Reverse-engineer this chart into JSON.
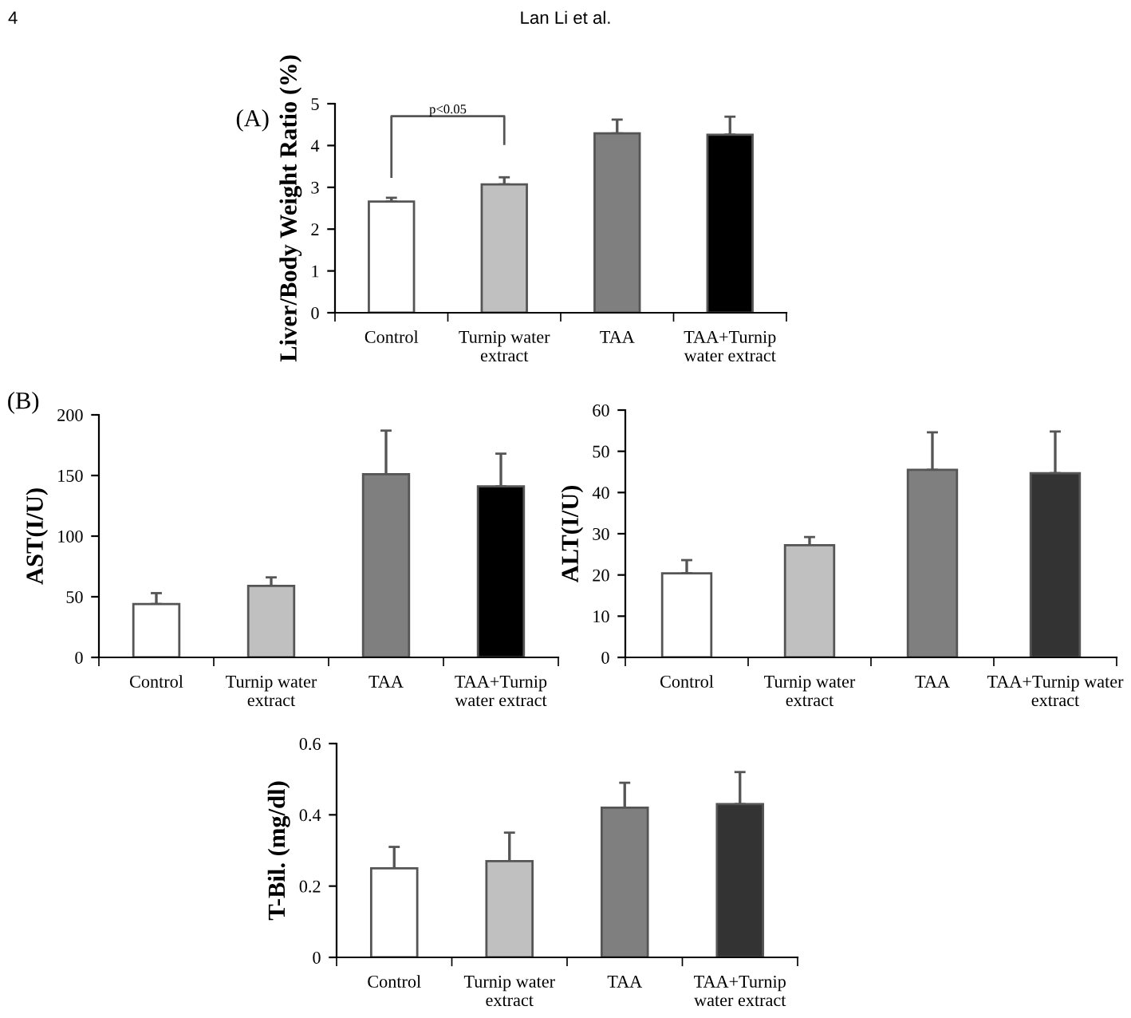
{
  "chart_data": [
    {
      "type": "bar",
      "title": "(A)",
      "ylabel": "Liver/Body Weight Ratio (%)",
      "categories": [
        "Control",
        "Turnip water\nextract",
        "TAA",
        "TAA+Turnip\nwater extract"
      ],
      "values": [
        2.66,
        3.07,
        4.29,
        4.26
      ],
      "errors": [
        [
          2.66,
          2.75
        ],
        [
          3.07,
          3.24
        ],
        [
          4.29,
          4.62
        ],
        [
          4.26,
          4.69
        ]
      ],
      "colors": [
        "#ffffff",
        "#c0c0c0",
        "#7f7f7f",
        "#000000"
      ],
      "ylim": [
        0,
        5
      ],
      "yticks": [
        0,
        1,
        2,
        3,
        4,
        5
      ],
      "grid": false,
      "annotations": [
        "4",
        "Lan Li et al.",
        "p<0.05"
      ]
    },
    {
      "type": "bar",
      "title": "(B)",
      "ylabel": "AST(I/U)",
      "categories": [
        "Control",
        "Turnip water\nextract",
        "TAA",
        "TAA+Turnip\nwater extract"
      ],
      "values": [
        44,
        59,
        151,
        141
      ],
      "errors": [
        [
          44,
          53
        ],
        [
          59,
          66
        ],
        [
          151,
          187
        ],
        [
          141,
          168
        ]
      ],
      "colors": [
        "#ffffff",
        "#c0c0c0",
        "#7f7f7f",
        "#000000"
      ],
      "ylim": [
        0,
        200
      ],
      "yticks": [
        0,
        50,
        100,
        150,
        200
      ],
      "grid": false
    },
    {
      "type": "bar",
      "ylabel": "ALT(I/U)",
      "categories": [
        "Control",
        "Turnip water\nextract",
        "TAA",
        "TAA+Turnip water\nextract"
      ],
      "values": [
        20.4,
        27.2,
        45.5,
        44.7
      ],
      "errors": [
        [
          20.4,
          23.6
        ],
        [
          27.2,
          29.2
        ],
        [
          45.5,
          54.6
        ],
        [
          44.7,
          54.8
        ]
      ],
      "colors": [
        "#ffffff",
        "#c0c0c0",
        "#7f7f7f",
        "#333333"
      ],
      "ylim": [
        0,
        60
      ],
      "yticks": [
        0,
        10,
        20,
        30,
        40,
        50,
        60
      ],
      "grid": false
    },
    {
      "type": "bar",
      "ylabel": "T-Bil. (mg/dl)",
      "categories": [
        "Control",
        "Turnip water\nextract",
        "TAA",
        "TAA+Turnip\nwater extract"
      ],
      "values": [
        0.25,
        0.27,
        0.42,
        0.43
      ],
      "errors": [
        [
          0.25,
          0.31
        ],
        [
          0.27,
          0.35
        ],
        [
          0.42,
          0.49
        ],
        [
          0.43,
          0.52
        ]
      ],
      "colors": [
        "#ffffff",
        "#c0c0c0",
        "#7f7f7f",
        "#333333"
      ],
      "ylim": [
        0,
        0.6
      ],
      "yticks": [
        0,
        0.2,
        0.4,
        0.6
      ],
      "grid": false
    }
  ]
}
